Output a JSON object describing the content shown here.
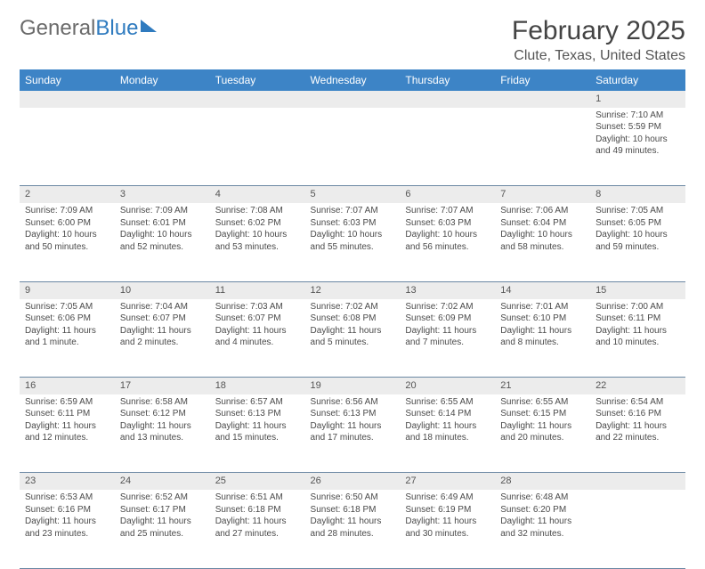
{
  "brand": {
    "part1": "General",
    "part2": "Blue"
  },
  "title": "February 2025",
  "location": "Clute, Texas, United States",
  "colors": {
    "header_bg": "#3d84c6",
    "header_text": "#ffffff",
    "daynum_bg": "#ececec",
    "border": "#6a87a3",
    "text": "#4a4a4a",
    "brand_gray": "#6b6b6b",
    "brand_blue": "#2f7bbf"
  },
  "day_headers": [
    "Sunday",
    "Monday",
    "Tuesday",
    "Wednesday",
    "Thursday",
    "Friday",
    "Saturday"
  ],
  "weeks": [
    {
      "nums": [
        "",
        "",
        "",
        "",
        "",
        "",
        "1"
      ],
      "cells": [
        null,
        null,
        null,
        null,
        null,
        null,
        {
          "sunrise": "7:10 AM",
          "sunset": "5:59 PM",
          "daylight": "10 hours and 49 minutes."
        }
      ]
    },
    {
      "nums": [
        "2",
        "3",
        "4",
        "5",
        "6",
        "7",
        "8"
      ],
      "cells": [
        {
          "sunrise": "7:09 AM",
          "sunset": "6:00 PM",
          "daylight": "10 hours and 50 minutes."
        },
        {
          "sunrise": "7:09 AM",
          "sunset": "6:01 PM",
          "daylight": "10 hours and 52 minutes."
        },
        {
          "sunrise": "7:08 AM",
          "sunset": "6:02 PM",
          "daylight": "10 hours and 53 minutes."
        },
        {
          "sunrise": "7:07 AM",
          "sunset": "6:03 PM",
          "daylight": "10 hours and 55 minutes."
        },
        {
          "sunrise": "7:07 AM",
          "sunset": "6:03 PM",
          "daylight": "10 hours and 56 minutes."
        },
        {
          "sunrise": "7:06 AM",
          "sunset": "6:04 PM",
          "daylight": "10 hours and 58 minutes."
        },
        {
          "sunrise": "7:05 AM",
          "sunset": "6:05 PM",
          "daylight": "10 hours and 59 minutes."
        }
      ]
    },
    {
      "nums": [
        "9",
        "10",
        "11",
        "12",
        "13",
        "14",
        "15"
      ],
      "cells": [
        {
          "sunrise": "7:05 AM",
          "sunset": "6:06 PM",
          "daylight": "11 hours and 1 minute."
        },
        {
          "sunrise": "7:04 AM",
          "sunset": "6:07 PM",
          "daylight": "11 hours and 2 minutes."
        },
        {
          "sunrise": "7:03 AM",
          "sunset": "6:07 PM",
          "daylight": "11 hours and 4 minutes."
        },
        {
          "sunrise": "7:02 AM",
          "sunset": "6:08 PM",
          "daylight": "11 hours and 5 minutes."
        },
        {
          "sunrise": "7:02 AM",
          "sunset": "6:09 PM",
          "daylight": "11 hours and 7 minutes."
        },
        {
          "sunrise": "7:01 AM",
          "sunset": "6:10 PM",
          "daylight": "11 hours and 8 minutes."
        },
        {
          "sunrise": "7:00 AM",
          "sunset": "6:11 PM",
          "daylight": "11 hours and 10 minutes."
        }
      ]
    },
    {
      "nums": [
        "16",
        "17",
        "18",
        "19",
        "20",
        "21",
        "22"
      ],
      "cells": [
        {
          "sunrise": "6:59 AM",
          "sunset": "6:11 PM",
          "daylight": "11 hours and 12 minutes."
        },
        {
          "sunrise": "6:58 AM",
          "sunset": "6:12 PM",
          "daylight": "11 hours and 13 minutes."
        },
        {
          "sunrise": "6:57 AM",
          "sunset": "6:13 PM",
          "daylight": "11 hours and 15 minutes."
        },
        {
          "sunrise": "6:56 AM",
          "sunset": "6:13 PM",
          "daylight": "11 hours and 17 minutes."
        },
        {
          "sunrise": "6:55 AM",
          "sunset": "6:14 PM",
          "daylight": "11 hours and 18 minutes."
        },
        {
          "sunrise": "6:55 AM",
          "sunset": "6:15 PM",
          "daylight": "11 hours and 20 minutes."
        },
        {
          "sunrise": "6:54 AM",
          "sunset": "6:16 PM",
          "daylight": "11 hours and 22 minutes."
        }
      ]
    },
    {
      "nums": [
        "23",
        "24",
        "25",
        "26",
        "27",
        "28",
        ""
      ],
      "cells": [
        {
          "sunrise": "6:53 AM",
          "sunset": "6:16 PM",
          "daylight": "11 hours and 23 minutes."
        },
        {
          "sunrise": "6:52 AM",
          "sunset": "6:17 PM",
          "daylight": "11 hours and 25 minutes."
        },
        {
          "sunrise": "6:51 AM",
          "sunset": "6:18 PM",
          "daylight": "11 hours and 27 minutes."
        },
        {
          "sunrise": "6:50 AM",
          "sunset": "6:18 PM",
          "daylight": "11 hours and 28 minutes."
        },
        {
          "sunrise": "6:49 AM",
          "sunset": "6:19 PM",
          "daylight": "11 hours and 30 minutes."
        },
        {
          "sunrise": "6:48 AM",
          "sunset": "6:20 PM",
          "daylight": "11 hours and 32 minutes."
        },
        null
      ]
    }
  ],
  "labels": {
    "sunrise": "Sunrise: ",
    "sunset": "Sunset: ",
    "daylight": "Daylight: "
  }
}
